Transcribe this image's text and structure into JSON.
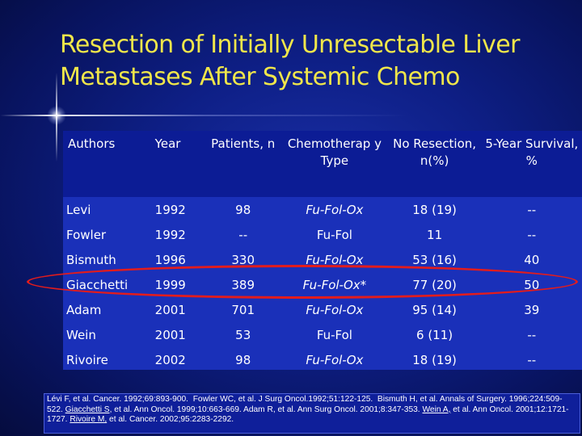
{
  "slide": {
    "title_line1": "Resection of Initially Unresectable Liver",
    "title_line2": "Metastases After Systemic Chemo",
    "background_color": "#0e1f86",
    "title_color": "#f0e64a",
    "highlight_color": "#e31c1c"
  },
  "table": {
    "headers": {
      "authors": "Authors",
      "year": "Year",
      "patients": "Patients, n",
      "chemo": "Chemotherap y Type",
      "no_resection": "No Resection, n(%)",
      "survival": "5-Year Survival, %"
    },
    "rows": [
      {
        "authors": "Levi",
        "year": "1992",
        "patients": "98",
        "chemo": "Fu-Fol-Ox",
        "no_resection": "18 (19)",
        "survival": "--"
      },
      {
        "authors": "Fowler",
        "year": "1992",
        "patients": "--",
        "chemo": "Fu-Fol",
        "no_resection": "11",
        "survival": "--"
      },
      {
        "authors": "Bismuth",
        "year": "1996",
        "patients": "330",
        "chemo": "Fu-Fol-Ox",
        "no_resection": "53 (16)",
        "survival": "40"
      },
      {
        "authors": "Giacchetti",
        "year": "1999",
        "patients": "389",
        "chemo": "Fu-Fol-Ox*",
        "no_resection": "77 (20)",
        "survival": "50"
      },
      {
        "authors": "Adam",
        "year": "2001",
        "patients": "701",
        "chemo": "Fu-Fol-Ox",
        "no_resection": "95 (14)",
        "survival": "39"
      },
      {
        "authors": "Wein",
        "year": "2001",
        "patients": "53",
        "chemo": "Fu-Fol",
        "no_resection": "6 (11)",
        "survival": "--"
      },
      {
        "authors": "Rivoire",
        "year": "2002",
        "patients": "98",
        "chemo": "Fu-Fol-Ox",
        "no_resection": "18 (19)",
        "survival": "--"
      }
    ]
  },
  "references": {
    "levi": "Lévi F, et al. Cancer. 1992;69:893-900.",
    "fowler": "Fowler WC, et al. J Surg Oncol.1992;51:122-125.",
    "bismuth": "Bismuth H, et al. Annals of Surgery. 1996;224:509-522.",
    "giacchetti_name": "Giacchetti S,",
    "giacchetti_rest": "et al. Ann Oncol. 1999;10:663-669.",
    "adam": "Adam R, et al. Ann Surg Oncol. 2001;8:347-353.",
    "wein_name": "Wein A,",
    "wein_rest": "et al. Ann Oncol. 2001;12:1721-1727.",
    "rivoire_name": "Rivoire M,",
    "rivoire_rest": "et al. Cancer. 2002;95:2283-2292."
  }
}
